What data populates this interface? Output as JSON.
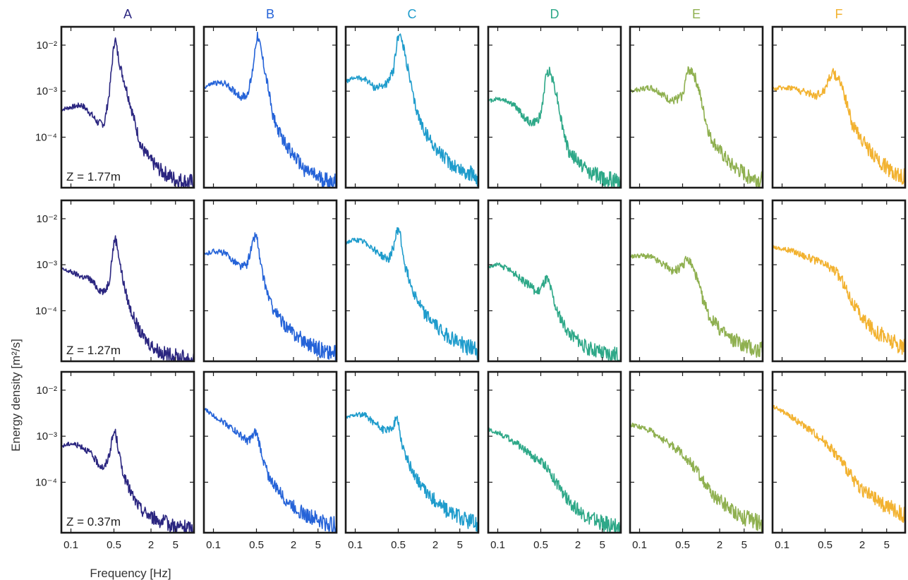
{
  "figure": {
    "ylabel": "Energy density [m²/s]",
    "xlabel": "Frequency [Hz]"
  },
  "chart_data": {
    "type": "line",
    "xscale": "log",
    "yscale": "log",
    "xlim": [
      0.07,
      10
    ],
    "ylim": [
      8e-06,
      0.025
    ],
    "x_ticks": [
      0.1,
      0.5,
      2,
      5
    ],
    "x_tick_labels": [
      "0.1",
      "0.5",
      "2",
      "5"
    ],
    "y_ticks": [
      0.0001,
      0.001,
      0.01
    ],
    "y_tick_labels": [
      "10⁻⁴",
      "10⁻³",
      "10⁻²"
    ],
    "columns": [
      {
        "label": "A",
        "color": "#2b2680"
      },
      {
        "label": "B",
        "color": "#2563d8"
      },
      {
        "label": "C",
        "color": "#1f9ccc"
      },
      {
        "label": "D",
        "color": "#2ea888"
      },
      {
        "label": "E",
        "color": "#8fb050"
      },
      {
        "label": "F",
        "color": "#f2b230"
      }
    ],
    "rows": [
      {
        "z_label": "Z = 1.77m"
      },
      {
        "z_label": "Z = 1.27m"
      },
      {
        "z_label": "Z = 0.37m"
      }
    ],
    "panels": [
      {
        "column": "A",
        "row": 0,
        "x": [
          0.07,
          0.1,
          0.15,
          0.2,
          0.28,
          0.35,
          0.42,
          0.48,
          0.52,
          0.57,
          0.65,
          0.75,
          0.9,
          1.1,
          1.4,
          2,
          3,
          5,
          10
        ],
        "y": [
          0.0004,
          0.00045,
          0.0005,
          0.00035,
          0.0002,
          0.0002,
          0.0009,
          0.006,
          0.015,
          0.007,
          0.003,
          0.0015,
          0.0006,
          0.0002,
          6e-05,
          3e-05,
          1.8e-05,
          1.2e-05,
          1e-05
        ]
      },
      {
        "column": "B",
        "row": 0,
        "x": [
          0.07,
          0.1,
          0.15,
          0.2,
          0.28,
          0.35,
          0.42,
          0.48,
          0.52,
          0.57,
          0.65,
          0.75,
          0.9,
          1.1,
          1.4,
          2,
          3,
          5,
          10
        ],
        "y": [
          0.0012,
          0.0015,
          0.0015,
          0.0011,
          0.00075,
          0.0008,
          0.002,
          0.009,
          0.018,
          0.01,
          0.004,
          0.0015,
          0.00035,
          0.00015,
          8e-05,
          4e-05,
          2e-05,
          1.3e-05,
          1e-05
        ]
      },
      {
        "column": "C",
        "row": 0,
        "x": [
          0.07,
          0.1,
          0.15,
          0.2,
          0.28,
          0.35,
          0.42,
          0.48,
          0.52,
          0.57,
          0.65,
          0.75,
          0.9,
          1.1,
          1.4,
          2,
          3,
          5,
          10
        ],
        "y": [
          0.0016,
          0.002,
          0.0018,
          0.0012,
          0.0013,
          0.0016,
          0.003,
          0.012,
          0.02,
          0.012,
          0.006,
          0.0022,
          0.0006,
          0.00025,
          0.00012,
          6e-05,
          3.2e-05,
          2e-05,
          1.3e-05
        ]
      },
      {
        "column": "D",
        "row": 0,
        "x": [
          0.07,
          0.1,
          0.15,
          0.2,
          0.28,
          0.35,
          0.42,
          0.5,
          0.56,
          0.62,
          0.68,
          0.75,
          0.9,
          1.1,
          1.4,
          2,
          3,
          5,
          10
        ],
        "y": [
          0.0006,
          0.0007,
          0.0006,
          0.00045,
          0.00025,
          0.0002,
          0.00022,
          0.0003,
          0.0009,
          0.0025,
          0.0028,
          0.0022,
          0.0009,
          0.0002,
          5e-05,
          3e-05,
          1.8e-05,
          1.3e-05,
          1e-05
        ]
      },
      {
        "column": "E",
        "row": 0,
        "x": [
          0.07,
          0.1,
          0.15,
          0.2,
          0.28,
          0.35,
          0.42,
          0.5,
          0.56,
          0.62,
          0.68,
          0.75,
          0.9,
          1.1,
          1.4,
          2,
          3,
          5,
          10
        ],
        "y": [
          0.001,
          0.0011,
          0.0012,
          0.001,
          0.0007,
          0.0006,
          0.0007,
          0.0008,
          0.0018,
          0.0028,
          0.003,
          0.0025,
          0.0012,
          0.00035,
          0.0001,
          5e-05,
          2.5e-05,
          1.6e-05,
          1.1e-05
        ]
      },
      {
        "column": "F",
        "row": 0,
        "x": [
          0.07,
          0.1,
          0.15,
          0.2,
          0.28,
          0.35,
          0.42,
          0.5,
          0.56,
          0.62,
          0.68,
          0.75,
          0.9,
          1.1,
          1.4,
          2,
          3,
          5,
          10
        ],
        "y": [
          0.0011,
          0.0012,
          0.0012,
          0.001,
          0.0009,
          0.0008,
          0.0009,
          0.0011,
          0.0018,
          0.0022,
          0.0024,
          0.0022,
          0.0016,
          0.0006,
          0.00018,
          9e-05,
          4e-05,
          2.2e-05,
          1.3e-05
        ]
      },
      {
        "column": "A",
        "row": 1,
        "x": [
          0.07,
          0.1,
          0.15,
          0.2,
          0.28,
          0.35,
          0.42,
          0.48,
          0.52,
          0.57,
          0.65,
          0.75,
          0.9,
          1.1,
          1.4,
          2,
          3,
          5,
          10
        ],
        "y": [
          0.0008,
          0.0007,
          0.00055,
          0.0005,
          0.0003,
          0.00025,
          0.00045,
          0.002,
          0.004,
          0.0025,
          0.0008,
          0.0003,
          0.00012,
          6e-05,
          3e-05,
          1.8e-05,
          1.2e-05,
          1e-05,
          9e-06
        ]
      },
      {
        "column": "B",
        "row": 1,
        "x": [
          0.07,
          0.1,
          0.15,
          0.2,
          0.28,
          0.35,
          0.42,
          0.48,
          0.52,
          0.57,
          0.65,
          0.75,
          0.9,
          1.1,
          1.4,
          2,
          3,
          5,
          10
        ],
        "y": [
          0.0016,
          0.002,
          0.0018,
          0.0013,
          0.0009,
          0.001,
          0.0025,
          0.0045,
          0.0035,
          0.0012,
          0.0005,
          0.00025,
          0.00012,
          8e-05,
          5e-05,
          3.2e-05,
          2.2e-05,
          1.5e-05,
          1.1e-05
        ]
      },
      {
        "column": "C",
        "row": 1,
        "x": [
          0.07,
          0.1,
          0.15,
          0.2,
          0.28,
          0.35,
          0.42,
          0.48,
          0.52,
          0.57,
          0.65,
          0.75,
          0.9,
          1.1,
          1.4,
          2,
          3,
          5,
          10
        ],
        "y": [
          0.003,
          0.0035,
          0.003,
          0.0022,
          0.0015,
          0.0013,
          0.0025,
          0.0055,
          0.006,
          0.0025,
          0.0009,
          0.0005,
          0.00025,
          0.00014,
          8e-05,
          5e-05,
          3e-05,
          2e-05,
          1.3e-05
        ]
      },
      {
        "column": "D",
        "row": 1,
        "x": [
          0.07,
          0.1,
          0.15,
          0.2,
          0.28,
          0.35,
          0.42,
          0.5,
          0.56,
          0.62,
          0.68,
          0.75,
          0.9,
          1.1,
          1.4,
          2,
          3,
          5,
          10
        ],
        "y": [
          0.0009,
          0.001,
          0.0008,
          0.0006,
          0.0004,
          0.00035,
          0.00025,
          0.0003,
          0.0004,
          0.0005,
          0.0004,
          0.00025,
          0.0001,
          6e-05,
          3.5e-05,
          2.2e-05,
          1.5e-05,
          1.2e-05,
          1e-05
        ]
      },
      {
        "column": "E",
        "row": 1,
        "x": [
          0.07,
          0.1,
          0.15,
          0.2,
          0.28,
          0.35,
          0.42,
          0.5,
          0.56,
          0.62,
          0.68,
          0.75,
          0.9,
          1.1,
          1.4,
          2,
          3,
          5,
          10
        ],
        "y": [
          0.0015,
          0.0016,
          0.0015,
          0.0012,
          0.0009,
          0.0007,
          0.0008,
          0.0009,
          0.0012,
          0.0013,
          0.0011,
          0.0008,
          0.0004,
          0.00015,
          7e-05,
          4e-05,
          2.5e-05,
          1.8e-05,
          1.3e-05
        ]
      },
      {
        "column": "F",
        "row": 1,
        "x": [
          0.07,
          0.1,
          0.15,
          0.2,
          0.28,
          0.35,
          0.42,
          0.5,
          0.56,
          0.62,
          0.68,
          0.75,
          0.9,
          1.1,
          1.4,
          2,
          3,
          5,
          10
        ],
        "y": [
          0.0025,
          0.0022,
          0.002,
          0.0017,
          0.0014,
          0.0012,
          0.0011,
          0.001,
          0.0009,
          0.00085,
          0.0008,
          0.0007,
          0.0005,
          0.0003,
          0.00015,
          7e-05,
          4e-05,
          2.5e-05,
          1.5e-05
        ]
      },
      {
        "column": "A",
        "row": 2,
        "x": [
          0.07,
          0.1,
          0.15,
          0.2,
          0.28,
          0.35,
          0.42,
          0.48,
          0.52,
          0.57,
          0.65,
          0.75,
          0.9,
          1.1,
          1.4,
          2,
          3,
          5,
          10
        ],
        "y": [
          0.0006,
          0.0007,
          0.0006,
          0.00045,
          0.00025,
          0.0002,
          0.0004,
          0.001,
          0.0013,
          0.0007,
          0.00025,
          0.00012,
          7e-05,
          4e-05,
          2.5e-05,
          1.8e-05,
          1.4e-05,
          1.1e-05,
          9e-06
        ]
      },
      {
        "column": "B",
        "row": 2,
        "x": [
          0.07,
          0.1,
          0.15,
          0.2,
          0.28,
          0.35,
          0.42,
          0.48,
          0.52,
          0.57,
          0.65,
          0.75,
          0.9,
          1.1,
          1.4,
          2,
          3,
          5,
          10
        ],
        "y": [
          0.004,
          0.0028,
          0.002,
          0.0015,
          0.001,
          0.0008,
          0.0009,
          0.0012,
          0.001,
          0.0006,
          0.0003,
          0.00016,
          0.0001,
          7e-05,
          4.5e-05,
          3e-05,
          2e-05,
          1.5e-05,
          1.1e-05
        ]
      },
      {
        "column": "C",
        "row": 2,
        "x": [
          0.07,
          0.1,
          0.15,
          0.2,
          0.28,
          0.35,
          0.42,
          0.48,
          0.52,
          0.57,
          0.65,
          0.75,
          0.9,
          1.1,
          1.4,
          2,
          3,
          5,
          10
        ],
        "y": [
          0.0025,
          0.003,
          0.0028,
          0.002,
          0.0014,
          0.0013,
          0.0018,
          0.0025,
          0.0015,
          0.0007,
          0.0004,
          0.00025,
          0.00015,
          0.0001,
          6e-05,
          4e-05,
          2.5e-05,
          1.7e-05,
          1.2e-05
        ]
      },
      {
        "column": "D",
        "row": 2,
        "x": [
          0.07,
          0.1,
          0.15,
          0.2,
          0.28,
          0.35,
          0.42,
          0.5,
          0.56,
          0.62,
          0.68,
          0.75,
          0.9,
          1.1,
          1.4,
          2,
          3,
          5,
          10
        ],
        "y": [
          0.0014,
          0.0012,
          0.0009,
          0.0007,
          0.0005,
          0.0004,
          0.00032,
          0.00028,
          0.00025,
          0.00022,
          0.00018,
          0.00014,
          0.0001,
          6e-05,
          4e-05,
          2.5e-05,
          1.7e-05,
          1.3e-05,
          1e-05
        ]
      },
      {
        "column": "E",
        "row": 2,
        "x": [
          0.07,
          0.1,
          0.15,
          0.2,
          0.28,
          0.35,
          0.42,
          0.5,
          0.56,
          0.62,
          0.68,
          0.75,
          0.9,
          1.1,
          1.4,
          2,
          3,
          5,
          10
        ],
        "y": [
          0.0018,
          0.0016,
          0.0013,
          0.001,
          0.00075,
          0.0006,
          0.0005,
          0.00042,
          0.00035,
          0.0003,
          0.00026,
          0.00022,
          0.00016,
          0.0001,
          6e-05,
          4e-05,
          2.6e-05,
          1.7e-05,
          1.2e-05
        ]
      },
      {
        "column": "F",
        "row": 2,
        "x": [
          0.07,
          0.1,
          0.15,
          0.2,
          0.28,
          0.35,
          0.42,
          0.5,
          0.56,
          0.62,
          0.68,
          0.75,
          0.9,
          1.1,
          1.4,
          2,
          3,
          5,
          10
        ],
        "y": [
          0.0045,
          0.0035,
          0.0025,
          0.0019,
          0.0014,
          0.0011,
          0.0009,
          0.00075,
          0.00065,
          0.00055,
          0.00048,
          0.0004,
          0.0003,
          0.0002,
          0.00012,
          7e-05,
          4.5e-05,
          3e-05,
          1.8e-05
        ]
      }
    ]
  }
}
